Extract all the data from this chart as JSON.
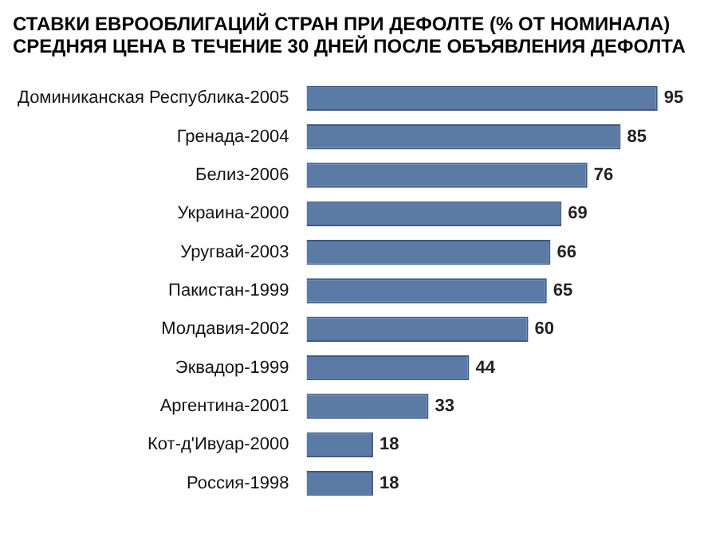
{
  "chart_data": {
    "type": "bar",
    "orientation": "horizontal",
    "title": "СТАВКИ ЕВРООБЛИГАЦИЙ СТРАН ПРИ ДЕФОЛТЕ (% ОТ НОМИНАЛА)",
    "subtitle": "СРЕДНЯЯ ЦЕНА В ТЕЧЕНИЕ 30 ДНЕЙ ПОСЛЕ ОБЪЯВЛЕНИЯ ДЕФОЛТА",
    "categories": [
      "Доминиканская Республика-2005",
      "Гренада-2004",
      "Белиз-2006",
      "Украина-2000",
      "Уругвай-2003",
      "Пакистан-1999",
      "Молдавия-2002",
      "Эквадор-1999",
      "Аргентина-2001",
      "Кот-д'Ивуар-2000",
      "Россия-1998"
    ],
    "values": [
      95,
      85,
      76,
      69,
      66,
      65,
      60,
      44,
      33,
      18,
      18
    ],
    "color": "#5b7ba6",
    "data_labels": true,
    "legend": false
  }
}
